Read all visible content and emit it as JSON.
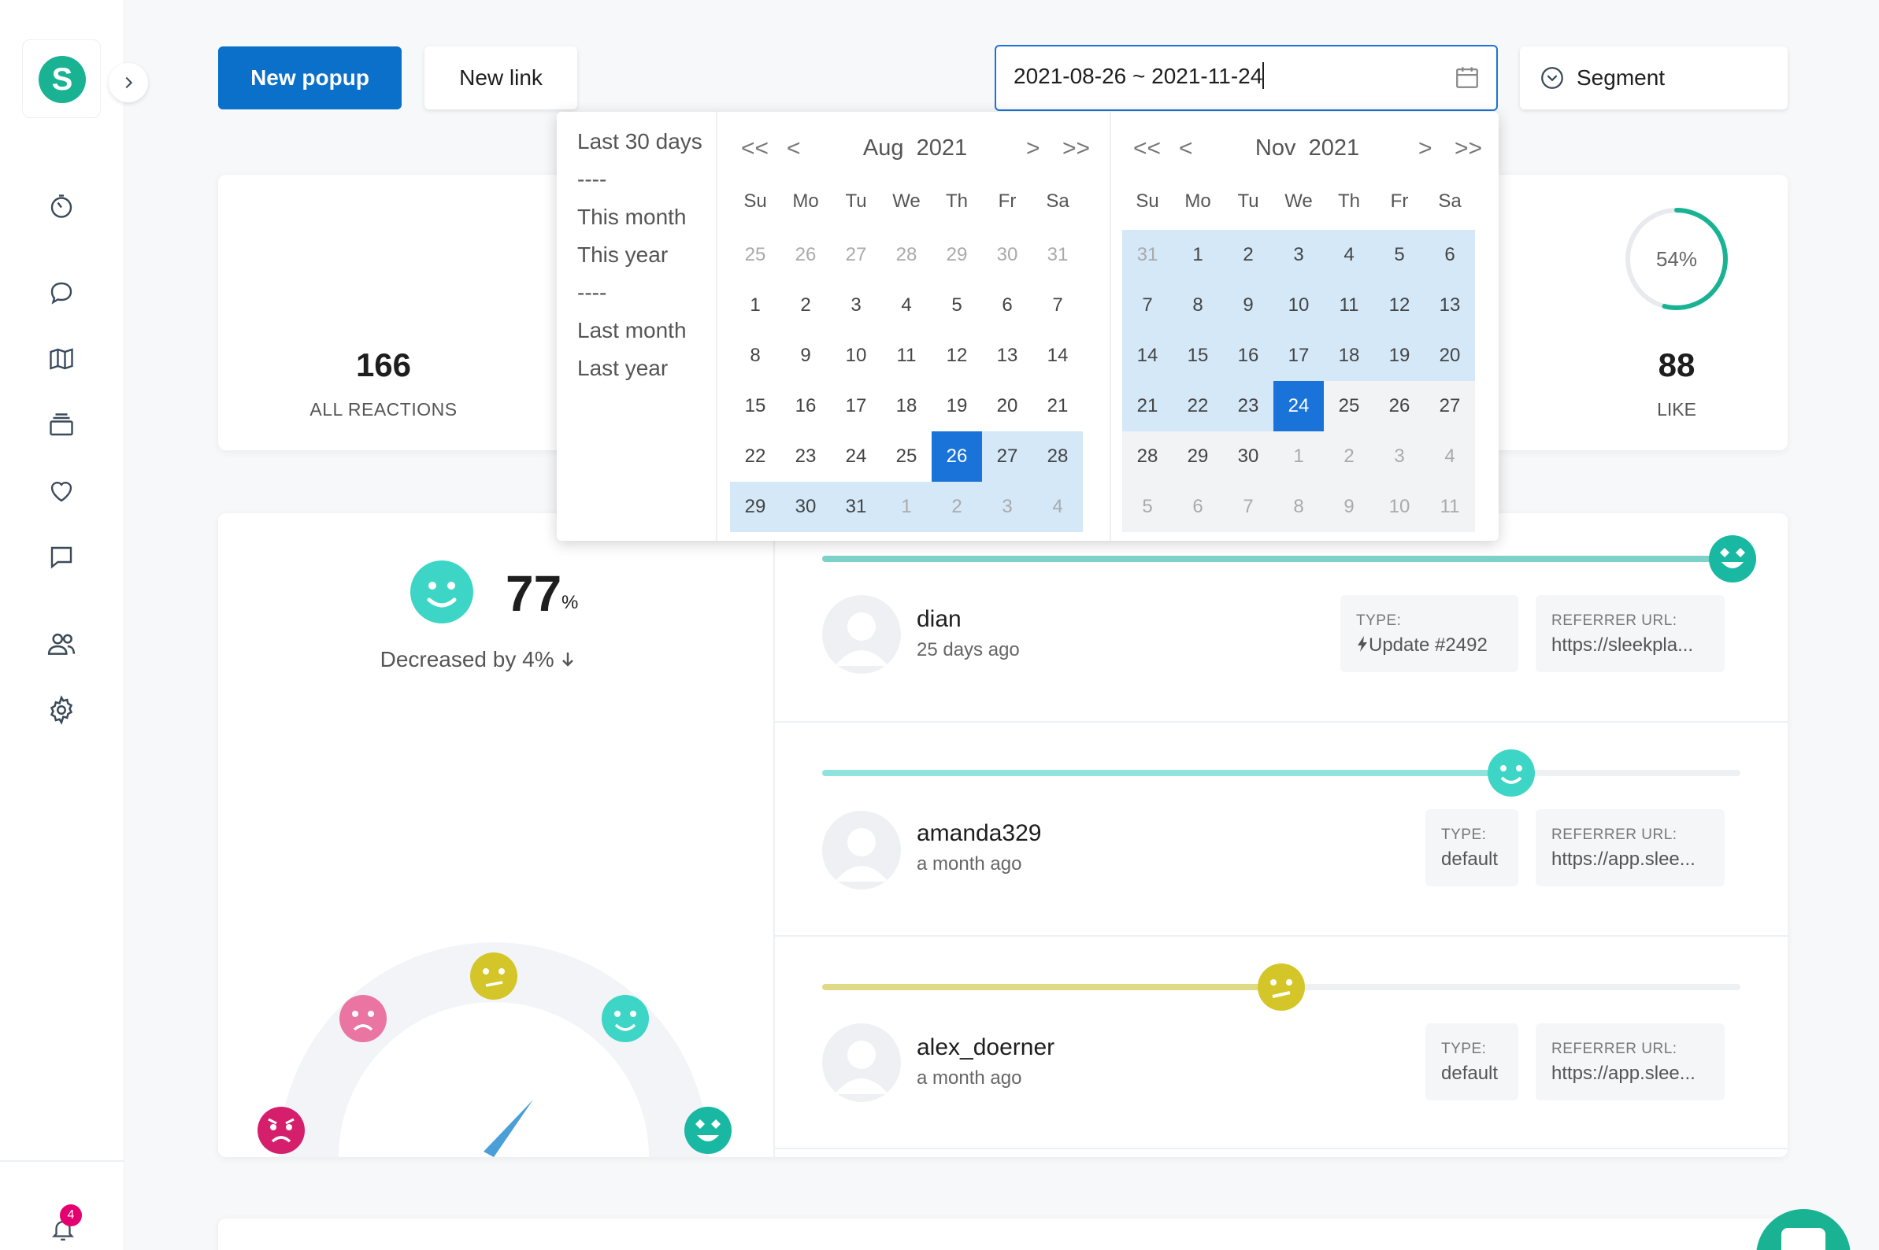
{
  "sidebar": {
    "logo_letter": "S",
    "notification_count": "4",
    "icons": [
      "timer-icon",
      "chat-bubble-icon",
      "map-icon",
      "stack-icon",
      "heart-icon",
      "message-icon",
      "users-icon",
      "gear-icon"
    ]
  },
  "toolbar": {
    "new_popup_label": "New popup",
    "new_link_label": "New link",
    "date_range_value": "2021-08-26 ~ 2021-11-24",
    "segment_label": "Segment"
  },
  "stats": {
    "all_reactions_value": "166",
    "all_reactions_label": "ALL REACTIONS",
    "like_percent": "54%",
    "like_percent_value": 54,
    "like_value": "88",
    "like_label": "LIKE"
  },
  "summary": {
    "percent": "77",
    "percent_sign": "%",
    "change_text": "Decreased by 4%"
  },
  "feed": [
    {
      "username": "dian",
      "time_ago": "25 days ago",
      "type_label": "TYPE:",
      "type_value": "Update #2492",
      "referrer_label": "REFERRER URL:",
      "referrer_value": "https://sleekpla...",
      "reaction_level": 1.0,
      "color": "#18b8a2"
    },
    {
      "username": "amanda329",
      "time_ago": "a month ago",
      "type_label": "TYPE:",
      "type_value": "default",
      "referrer_label": "REFERRER URL:",
      "referrer_value": "https://app.slee...",
      "reaction_level": 0.75,
      "color": "#3dd6c6"
    },
    {
      "username": "alex_doerner",
      "time_ago": "a month ago",
      "type_label": "TYPE:",
      "type_value": "default",
      "referrer_label": "REFERRER URL:",
      "referrer_value": "https://app.slee...",
      "reaction_level": 0.5,
      "color": "#d4c628"
    }
  ],
  "date_picker": {
    "presets": [
      "Last 30 days",
      "----",
      "This month",
      "This year",
      "----",
      "Last month",
      "Last year"
    ],
    "weekdays": [
      "Su",
      "Mo",
      "Tu",
      "We",
      "Th",
      "Fr",
      "Sa"
    ],
    "nav": {
      "prev_year": "<<",
      "prev_month": "<",
      "next_month": ">",
      "next_year": ">>"
    },
    "left": {
      "month": "Aug",
      "year": "2021",
      "days": [
        "25",
        "26",
        "27",
        "28",
        "29",
        "30",
        "31",
        "1",
        "2",
        "3",
        "4",
        "5",
        "6",
        "7",
        "8",
        "9",
        "10",
        "11",
        "12",
        "13",
        "14",
        "15",
        "16",
        "17",
        "18",
        "19",
        "20",
        "21",
        "22",
        "23",
        "24",
        "25",
        "26",
        "27",
        "28",
        "29",
        "30",
        "31",
        "1",
        "2",
        "3",
        "4"
      ],
      "first_in_month": 7,
      "last_in_month": 37,
      "range_start": 32,
      "range_end": 41
    },
    "right": {
      "month": "Nov",
      "year": "2021",
      "days": [
        "31",
        "1",
        "2",
        "3",
        "4",
        "5",
        "6",
        "7",
        "8",
        "9",
        "10",
        "11",
        "12",
        "13",
        "14",
        "15",
        "16",
        "17",
        "18",
        "19",
        "20",
        "21",
        "22",
        "23",
        "24",
        "25",
        "26",
        "27",
        "28",
        "29",
        "30",
        "1",
        "2",
        "3",
        "4",
        "5",
        "6",
        "7",
        "8",
        "9",
        "10",
        "11"
      ],
      "first_in_month": 1,
      "last_in_month": 30,
      "range_start": 0,
      "range_end": 24
    }
  },
  "colors": {
    "accent": "#0a70c9",
    "range_bg": "#d4e8f7",
    "selected_bg": "#1a73d8",
    "brand": "#19b394"
  }
}
